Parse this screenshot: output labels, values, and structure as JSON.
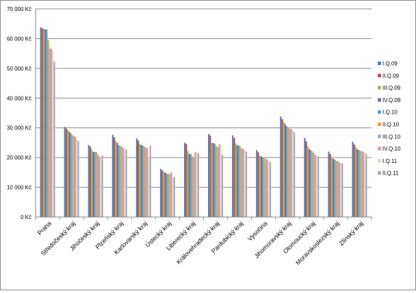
{
  "chart_data": {
    "type": "bar",
    "title": "",
    "xlabel": "",
    "ylabel": "",
    "ylim": [
      0,
      70000
    ],
    "yticks": [
      0,
      10000,
      20000,
      30000,
      40000,
      50000,
      60000,
      70000
    ],
    "ytick_labels": [
      "0 Kč",
      "10 000 Kč",
      "20 000 Kč",
      "30 000 Kč",
      "40 000 Kč",
      "50 000 Kč",
      "60 000 Kč",
      "70 000 Kč"
    ],
    "grid": true,
    "legend_position": "right",
    "categories": [
      "Praha",
      "Středočeský kraj",
      "Jihočeský kraj",
      "Plzeňský kraj",
      "Karlovarský kraj",
      "Ústecký kraj",
      "Liberecký kraj",
      "Královehradecký kraj",
      "Pardubický kraj",
      "Vysočina",
      "Jihomoravský kraj",
      "Olomoucký kraj",
      "Moravskoslezský kraj",
      "Zlínský kraj"
    ],
    "series": [
      {
        "name": "I.Q.09",
        "color": "#4f81bd",
        "values": [
          63800,
          30300,
          24200,
          27600,
          26400,
          16200,
          25000,
          27900,
          27500,
          22500,
          33800,
          26600,
          22000,
          25300
        ]
      },
      {
        "name": "II.Q.09",
        "color": "#c0504d",
        "values": [
          63500,
          29800,
          23700,
          26800,
          25700,
          15700,
          24600,
          27400,
          26600,
          21800,
          32900,
          25500,
          21200,
          24400
        ]
      },
      {
        "name": "III.Q.09",
        "color": "#9bbb59",
        "values": [
          63300,
          29300,
          22700,
          25600,
          24600,
          15200,
          22200,
          24900,
          24700,
          20600,
          32000,
          23800,
          19800,
          23600
        ]
      },
      {
        "name": "IV.Q.09",
        "color": "#8064a2",
        "values": [
          63100,
          28700,
          21900,
          24900,
          24200,
          14900,
          21200,
          24900,
          24100,
          20400,
          31200,
          22800,
          19600,
          22800
        ]
      },
      {
        "name": "I.Q.10",
        "color": "#4bacc6",
        "values": [
          63100,
          28200,
          21900,
          24200,
          24000,
          14600,
          21200,
          24600,
          24100,
          20100,
          30500,
          22500,
          19300,
          22600
        ]
      },
      {
        "name": "II.Q.10",
        "color": "#f79646",
        "values": [
          59500,
          27600,
          21900,
          23800,
          23700,
          14500,
          20400,
          23800,
          23700,
          20000,
          30000,
          22100,
          18900,
          22200
        ]
      },
      {
        "name": "III.Q.10",
        "color": "#8eb4e3",
        "values": [
          56700,
          27200,
          21100,
          23800,
          23400,
          14400,
          20100,
          23500,
          23000,
          19500,
          29700,
          21600,
          18800,
          22200
        ]
      },
      {
        "name": "IV.Q.10",
        "color": "#e6958f",
        "values": [
          56600,
          27000,
          20400,
          23200,
          23300,
          15000,
          21800,
          24500,
          23000,
          19400,
          29600,
          20900,
          18400,
          21900
        ]
      },
      {
        "name": "I.Q.11",
        "color": "#d7e4bd",
        "values": [
          55700,
          26100,
          20200,
          23000,
          20300,
          13400,
          21800,
          24400,
          22400,
          18900,
          29200,
          20600,
          18100,
          21700
        ]
      },
      {
        "name": "II.Q.11",
        "color": "#b3a2c7",
        "values": [
          52400,
          25600,
          20700,
          22700,
          24000,
          13400,
          21500,
          20900,
          22000,
          18400,
          28500,
          20300,
          18100,
          21300
        ]
      }
    ]
  }
}
